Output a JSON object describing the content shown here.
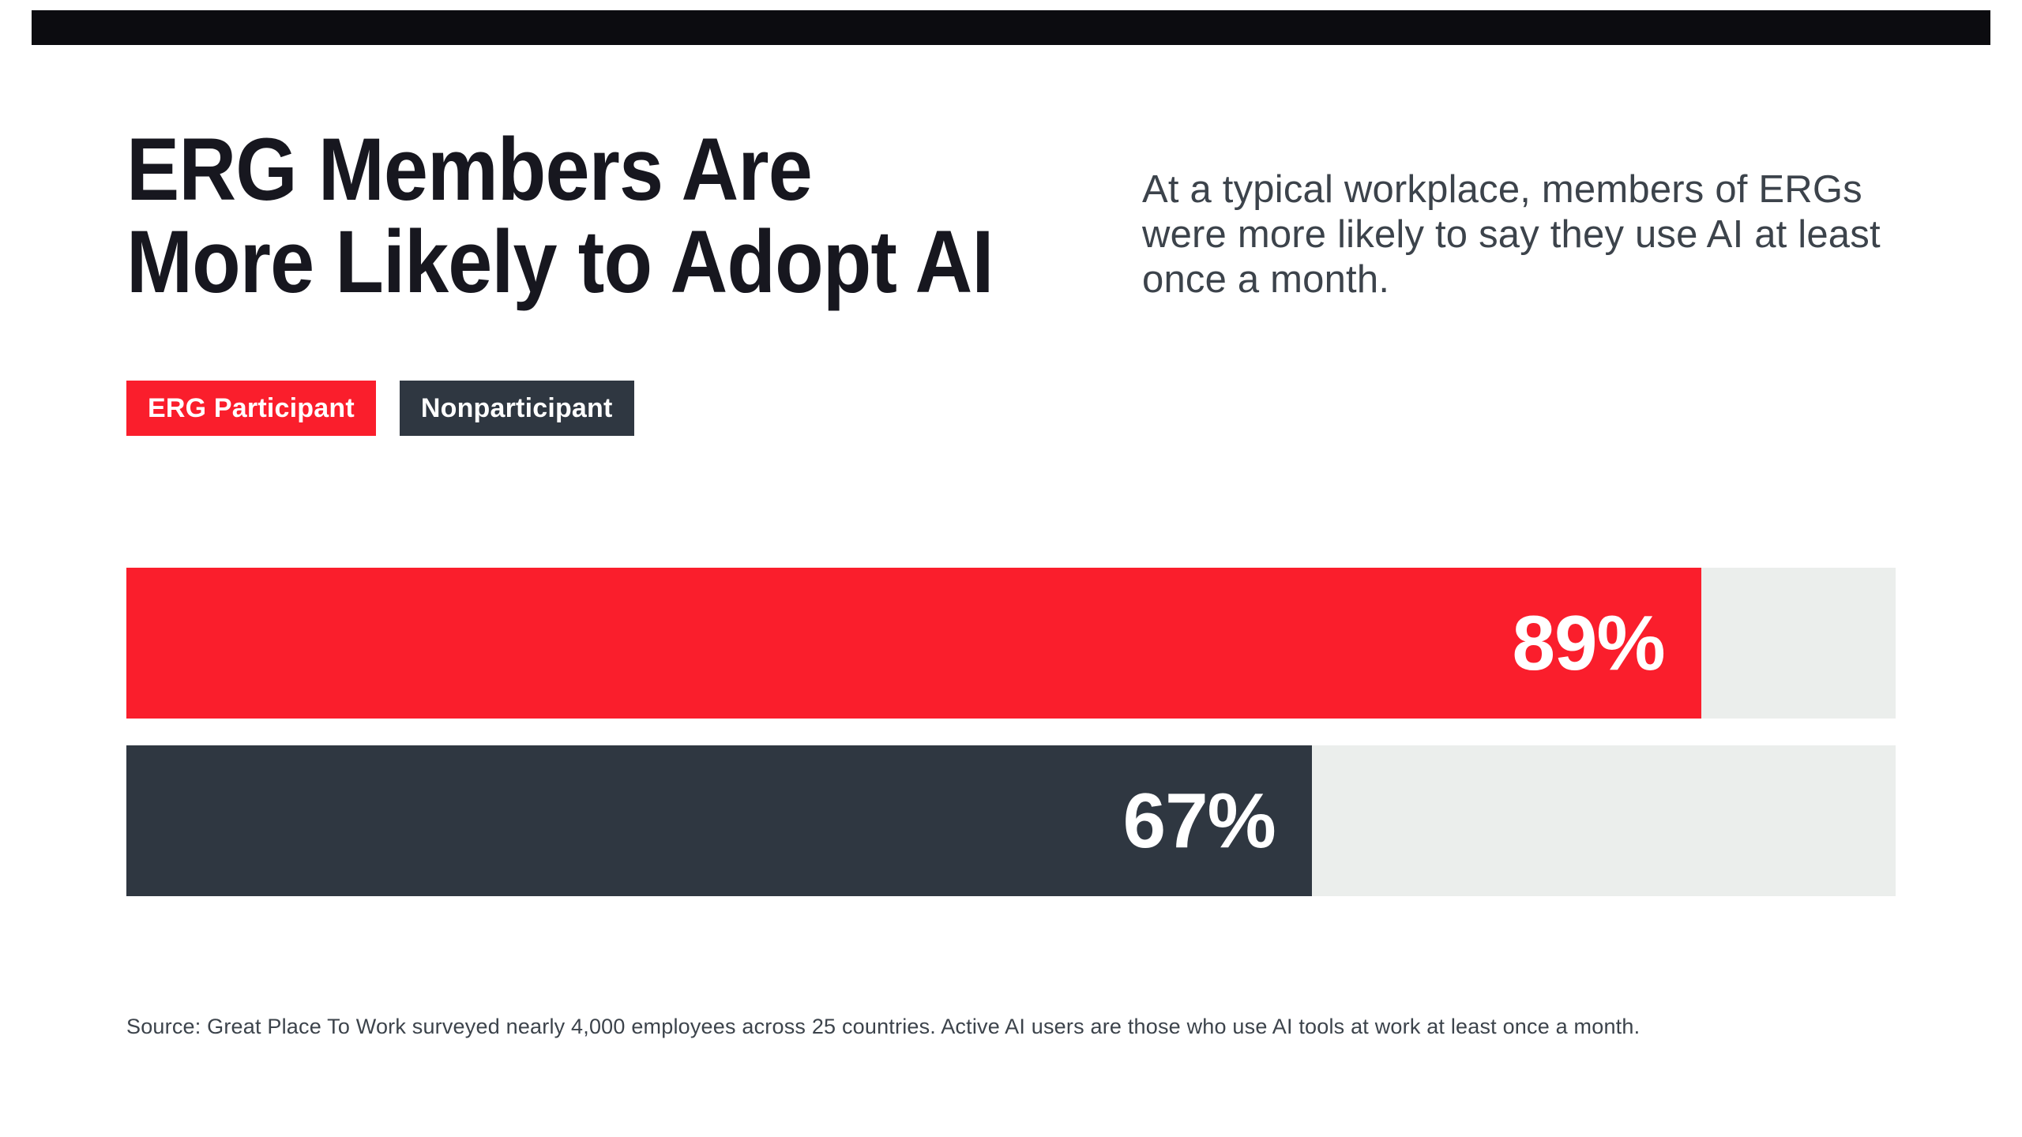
{
  "page": {
    "background": "#ffffff"
  },
  "top_bar": {
    "color": "#0c0c10"
  },
  "header": {
    "title": "ERG Members Are\nMore Likely to Adopt AI",
    "title_color": "#17171f",
    "subtitle": "At a typical workplace, members of ERGs\nwere more likely to say they use AI at least\nonce a month.",
    "subtitle_color": "#3c434b"
  },
  "legend": {
    "items": [
      {
        "label": "ERG Participant",
        "color": "#fa1e2c",
        "text_color": "#ffffff"
      },
      {
        "label": "Nonparticipant",
        "color": "#2f3741",
        "text_color": "#ffffff"
      }
    ]
  },
  "chart_data": {
    "type": "bar",
    "orientation": "horizontal",
    "categories": [
      "ERG Participant",
      "Nonparticipant"
    ],
    "values": [
      89,
      67
    ],
    "value_labels": [
      "89%",
      "67%"
    ],
    "series_colors": [
      "#fa1e2c",
      "#2f3741"
    ],
    "track_color": "#ebeeec",
    "value_label_color": "#ffffff",
    "xlim": [
      0,
      100
    ],
    "title": "ERG Members Are More Likely to Adopt AI",
    "xlabel": "",
    "ylabel": "",
    "grid": false,
    "legend_position": "top-left"
  },
  "source": {
    "text": "Source: Great Place To Work surveyed nearly 4,000 employees across 25 countries. Active AI users are those who use AI tools at work at least once a month.",
    "color": "#3c434b"
  }
}
